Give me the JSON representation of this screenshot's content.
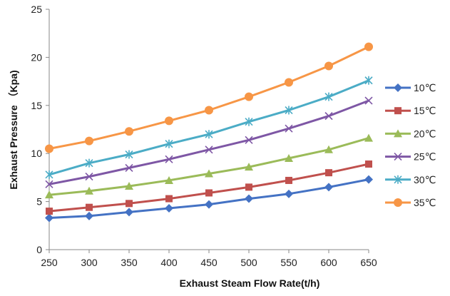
{
  "chart_data": {
    "type": "line",
    "title": "",
    "xlabel": "Exhaust Steam Flow Rate(t/h)",
    "ylabel": "Exhaust Pressure （Kpa)",
    "x": [
      250,
      300,
      350,
      400,
      450,
      500,
      550,
      600,
      650
    ],
    "xlim": [
      250,
      650
    ],
    "ylim": [
      0,
      25
    ],
    "x_ticks": [
      "250",
      "300",
      "350",
      "400",
      "450",
      "500",
      "550",
      "600",
      "650"
    ],
    "y_ticks": [
      "0",
      "5",
      "10",
      "15",
      "20",
      "25"
    ],
    "grid": false,
    "legend_position": "right",
    "series": [
      {
        "name": "10℃",
        "color": "#4472C4",
        "marker": "diamond",
        "values": [
          3.3,
          3.5,
          3.9,
          4.3,
          4.7,
          5.3,
          5.8,
          6.5,
          7.3
        ]
      },
      {
        "name": "15℃",
        "color": "#C0504D",
        "marker": "square",
        "values": [
          4.0,
          4.4,
          4.8,
          5.3,
          5.9,
          6.5,
          7.2,
          8.0,
          8.9
        ]
      },
      {
        "name": "20℃",
        "color": "#9BBB59",
        "marker": "triangle",
        "values": [
          5.7,
          6.1,
          6.6,
          7.2,
          7.9,
          8.6,
          9.5,
          10.4,
          11.6
        ]
      },
      {
        "name": "25℃",
        "color": "#7E57A5",
        "marker": "x",
        "values": [
          6.8,
          7.6,
          8.5,
          9.4,
          10.4,
          11.4,
          12.6,
          13.9,
          15.5
        ]
      },
      {
        "name": "30℃",
        "color": "#4BACC6",
        "marker": "star",
        "values": [
          7.8,
          9.0,
          9.9,
          11.0,
          12.0,
          13.3,
          14.5,
          15.9,
          17.6
        ]
      },
      {
        "name": "35℃",
        "color": "#F79646",
        "marker": "circle",
        "values": [
          10.5,
          11.3,
          12.3,
          13.4,
          14.5,
          15.9,
          17.4,
          19.1,
          21.1
        ]
      }
    ]
  }
}
